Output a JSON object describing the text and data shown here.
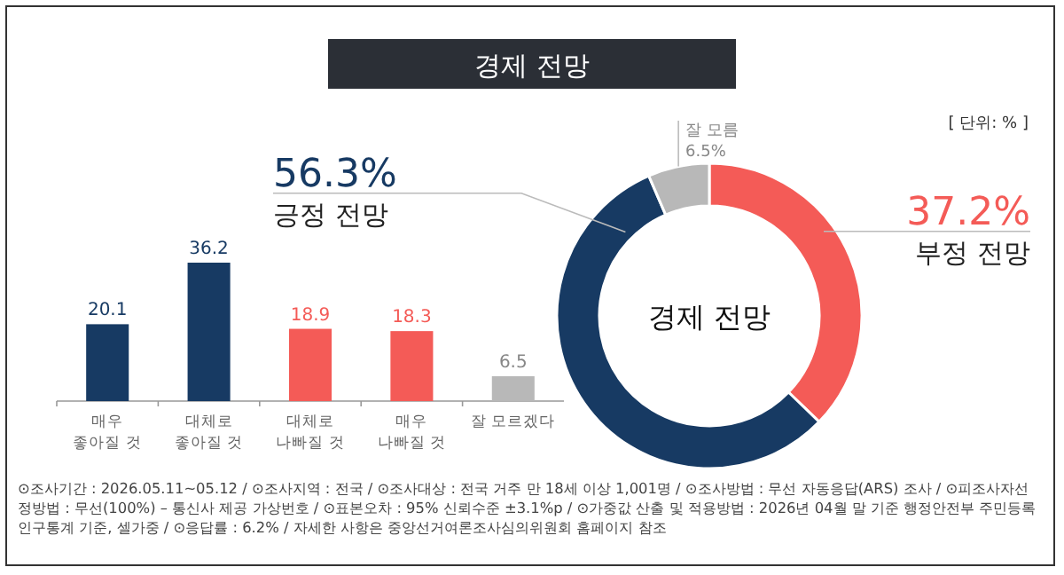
{
  "chart_data": [
    {
      "type": "bar",
      "title": "경제 전망",
      "categories": [
        "매우\n좋아질 것",
        "대체로\n좋아질 것",
        "대체로\n나빠질 것",
        "매우\n나빠질 것",
        "잘 모르겠다"
      ],
      "values": [
        20.1,
        36.2,
        18.9,
        18.3,
        6.5
      ],
      "colors": [
        "#173a63",
        "#173a63",
        "#f45b57",
        "#f45b57",
        "#b8b8b8"
      ],
      "data_labels": true,
      "annotations": [
        "⊙조사기간 : 2026.05.11~05.12 / ⊙조사지역 : 전국 / ⊙조사대상 : 전국 거주 만 18세 이상 1,001명 / ⊙조사방법 : 무선 자동응답(ARS) 조사 / ⊙피조사자선정방법 : 무선(100%) – 통신사 제공 가상번호 / ⊙표본오차 : 95% 신뢰수준 ±3.1%p / ⊙가중값 산출 및 적용방법 : 2026년 04월 말 기준 행정안전부 주민등록 인구통계 기준, 셀가중 / ⊙응답률 : 6.2% / 자세한 사항은 중앙선거여론조사심의위원회 홈페이지 참조"
      ]
    },
    {
      "type": "donut",
      "title": "경제 전망",
      "categories": [
        "부정 전망",
        "긍정 전망",
        "잘 모름"
      ],
      "values": [
        37.2,
        56.3,
        6.5
      ],
      "colors": [
        "#f45b57",
        "#173a63",
        "#b8b8b8"
      ],
      "value_labels": [
        "37.2%",
        "56.3%",
        "6.5%"
      ],
      "annotations": [
        "[ 단위: % ]"
      ]
    }
  ]
}
